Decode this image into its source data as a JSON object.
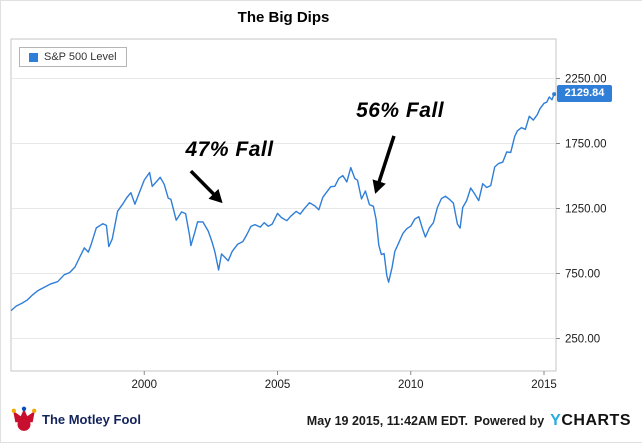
{
  "title": "The Big Dips",
  "legend": {
    "label": "S&P 500 Level"
  },
  "callout": {
    "value": "2129.84"
  },
  "colors": {
    "line": "#2f7ed8",
    "legend_square": "#2f7ed8",
    "callout_bg": "#2f7ed8",
    "grid": "#e8e8e8",
    "frame": "#c6c6c6",
    "annotation": "#000000"
  },
  "footer": {
    "brand": "The Motley Fool",
    "timestamp": "May 19 2015, 11:42AM EDT.",
    "powered_by": "Powered by",
    "provider_y": "Y",
    "provider_rest": "CHARTS"
  },
  "chart_data": {
    "type": "line",
    "title": "The Big Dips",
    "series_name": "S&P 500 Level",
    "x_range": [
      1995.0,
      2015.45
    ],
    "y_axis": {
      "min": 0,
      "max": 2554,
      "ticks": [
        250,
        750,
        1250,
        1750,
        2250
      ],
      "labels": [
        "250.00",
        "750.00",
        "1250.00",
        "1750.00",
        "2250.00"
      ]
    },
    "x_axis": {
      "ticks": [
        2000,
        2005,
        2010,
        2015
      ],
      "labels": [
        "2000",
        "2005",
        "2010",
        "2015"
      ]
    },
    "last_value": 2129.84,
    "grid": "horizontal",
    "legend_position": "top-left",
    "points": [
      [
        1995.0,
        465
      ],
      [
        1995.2,
        500
      ],
      [
        1995.4,
        520
      ],
      [
        1995.6,
        545
      ],
      [
        1995.8,
        584
      ],
      [
        1996.0,
        617
      ],
      [
        1996.25,
        645
      ],
      [
        1996.5,
        671
      ],
      [
        1996.75,
        687
      ],
      [
        1997.0,
        741
      ],
      [
        1997.2,
        757
      ],
      [
        1997.4,
        800
      ],
      [
        1997.6,
        885
      ],
      [
        1997.75,
        947
      ],
      [
        1997.9,
        915
      ],
      [
        1998.0,
        970
      ],
      [
        1998.2,
        1101
      ],
      [
        1998.45,
        1133
      ],
      [
        1998.58,
        1120
      ],
      [
        1998.67,
        957
      ],
      [
        1998.8,
        1017
      ],
      [
        1999.0,
        1229
      ],
      [
        1999.2,
        1286
      ],
      [
        1999.35,
        1335
      ],
      [
        1999.5,
        1372
      ],
      [
        1999.65,
        1283
      ],
      [
        1999.8,
        1363
      ],
      [
        2000.0,
        1469
      ],
      [
        2000.2,
        1527
      ],
      [
        2000.3,
        1420
      ],
      [
        2000.45,
        1454
      ],
      [
        2000.6,
        1490
      ],
      [
        2000.75,
        1436
      ],
      [
        2000.9,
        1330
      ],
      [
        2001.0,
        1320
      ],
      [
        2001.2,
        1160
      ],
      [
        2001.4,
        1224
      ],
      [
        2001.55,
        1211
      ],
      [
        2001.7,
        1040
      ],
      [
        2001.75,
        965
      ],
      [
        2001.9,
        1070
      ],
      [
        2002.0,
        1148
      ],
      [
        2002.2,
        1147
      ],
      [
        2002.4,
        1077
      ],
      [
        2002.55,
        989
      ],
      [
        2002.65,
        916
      ],
      [
        2002.79,
        777
      ],
      [
        2002.9,
        900
      ],
      [
        2003.0,
        880
      ],
      [
        2003.15,
        848
      ],
      [
        2003.3,
        920
      ],
      [
        2003.5,
        974
      ],
      [
        2003.7,
        996
      ],
      [
        2003.85,
        1050
      ],
      [
        2004.0,
        1112
      ],
      [
        2004.15,
        1126
      ],
      [
        2004.35,
        1107
      ],
      [
        2004.5,
        1141
      ],
      [
        2004.65,
        1114
      ],
      [
        2004.8,
        1130
      ],
      [
        2005.0,
        1212
      ],
      [
        2005.15,
        1180
      ],
      [
        2005.35,
        1156
      ],
      [
        2005.5,
        1191
      ],
      [
        2005.7,
        1228
      ],
      [
        2005.85,
        1207
      ],
      [
        2006.0,
        1248
      ],
      [
        2006.2,
        1295
      ],
      [
        2006.4,
        1270
      ],
      [
        2006.55,
        1240
      ],
      [
        2006.7,
        1336
      ],
      [
        2006.85,
        1378
      ],
      [
        2007.0,
        1418
      ],
      [
        2007.15,
        1421
      ],
      [
        2007.3,
        1482
      ],
      [
        2007.45,
        1503
      ],
      [
        2007.6,
        1455
      ],
      [
        2007.75,
        1565
      ],
      [
        2007.9,
        1481
      ],
      [
        2008.0,
        1468
      ],
      [
        2008.15,
        1323
      ],
      [
        2008.3,
        1385
      ],
      [
        2008.45,
        1280
      ],
      [
        2008.6,
        1267
      ],
      [
        2008.7,
        1166
      ],
      [
        2008.8,
        968
      ],
      [
        2008.9,
        896
      ],
      [
        2009.0,
        903
      ],
      [
        2009.1,
        735
      ],
      [
        2009.17,
        683
      ],
      [
        2009.3,
        798
      ],
      [
        2009.4,
        919
      ],
      [
        2009.55,
        987
      ],
      [
        2009.7,
        1057
      ],
      [
        2009.85,
        1095
      ],
      [
        2010.0,
        1115
      ],
      [
        2010.15,
        1169
      ],
      [
        2010.3,
        1187
      ],
      [
        2010.45,
        1089
      ],
      [
        2010.55,
        1031
      ],
      [
        2010.7,
        1101
      ],
      [
        2010.85,
        1141
      ],
      [
        2011.0,
        1258
      ],
      [
        2011.15,
        1326
      ],
      [
        2011.3,
        1345
      ],
      [
        2011.45,
        1321
      ],
      [
        2011.6,
        1292
      ],
      [
        2011.75,
        1131
      ],
      [
        2011.85,
        1099
      ],
      [
        2011.95,
        1258
      ],
      [
        2012.1,
        1312
      ],
      [
        2012.25,
        1408
      ],
      [
        2012.4,
        1362
      ],
      [
        2012.55,
        1310
      ],
      [
        2012.7,
        1441
      ],
      [
        2012.85,
        1412
      ],
      [
        2013.0,
        1426
      ],
      [
        2013.15,
        1569
      ],
      [
        2013.3,
        1597
      ],
      [
        2013.45,
        1606
      ],
      [
        2013.6,
        1685
      ],
      [
        2013.75,
        1682
      ],
      [
        2013.9,
        1805
      ],
      [
        2014.0,
        1848
      ],
      [
        2014.15,
        1872
      ],
      [
        2014.3,
        1859
      ],
      [
        2014.45,
        1960
      ],
      [
        2014.6,
        1930
      ],
      [
        2014.75,
        1972
      ],
      [
        2014.85,
        2018
      ],
      [
        2015.0,
        2059
      ],
      [
        2015.1,
        2068
      ],
      [
        2015.2,
        2108
      ],
      [
        2015.3,
        2086
      ],
      [
        2015.38,
        2129.84
      ]
    ],
    "annotations": [
      {
        "text": "47% Fall",
        "text_at": [
          2003.2,
          1700
        ],
        "arrow_from": [
          2001.75,
          1538
        ],
        "arrow_to": [
          2002.86,
          1308
        ]
      },
      {
        "text": "56% Fall",
        "text_at": [
          2009.6,
          2000
        ],
        "arrow_from": [
          2009.37,
          1808
        ],
        "arrow_to": [
          2008.7,
          1385
        ]
      }
    ]
  }
}
